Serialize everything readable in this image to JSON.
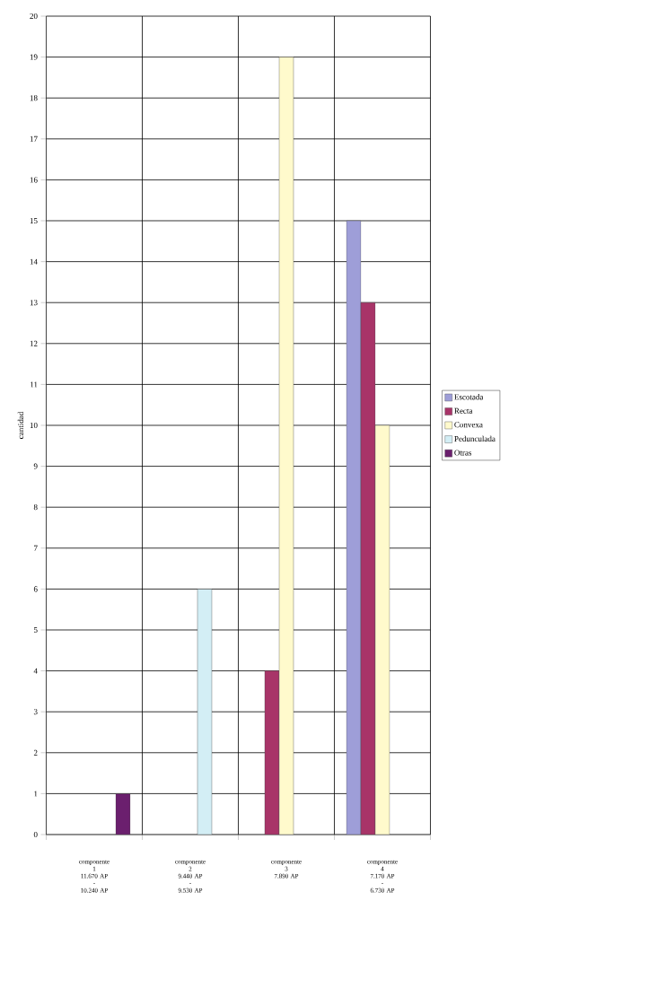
{
  "chart_data": {
    "type": "bar",
    "ylabel": "cantidad",
    "categories": [
      "componente\n1\n11.670 AP\n-\n10.240 AP",
      "componente\n2\n9.440 AP\n-\n9.530 AP",
      "componente\n3\n7.890 AP",
      "componente\n4\n7.170 AP\n-\n6.730 AP"
    ],
    "series": [
      {
        "name": "Escotada",
        "color": "#9e9ed8",
        "values": [
          0,
          0,
          0,
          15
        ]
      },
      {
        "name": "Recta",
        "color": "#a83468",
        "values": [
          0,
          0,
          4,
          13
        ]
      },
      {
        "name": "Convexa",
        "color": "#fffacc",
        "values": [
          0,
          0,
          19,
          10
        ]
      },
      {
        "name": "Pedunculada",
        "color": "#d3eef5",
        "values": [
          0,
          6,
          0,
          0
        ]
      },
      {
        "name": "Otras",
        "color": "#6b1f6e",
        "values": [
          1,
          0,
          0,
          0
        ]
      }
    ],
    "ylim": [
      0,
      20
    ],
    "yticks": [
      0,
      1,
      2,
      3,
      4,
      5,
      6,
      7,
      8,
      9,
      10,
      11,
      12,
      13,
      14,
      15,
      16,
      17,
      18,
      19,
      20
    ],
    "grid": true,
    "legend": "right"
  }
}
